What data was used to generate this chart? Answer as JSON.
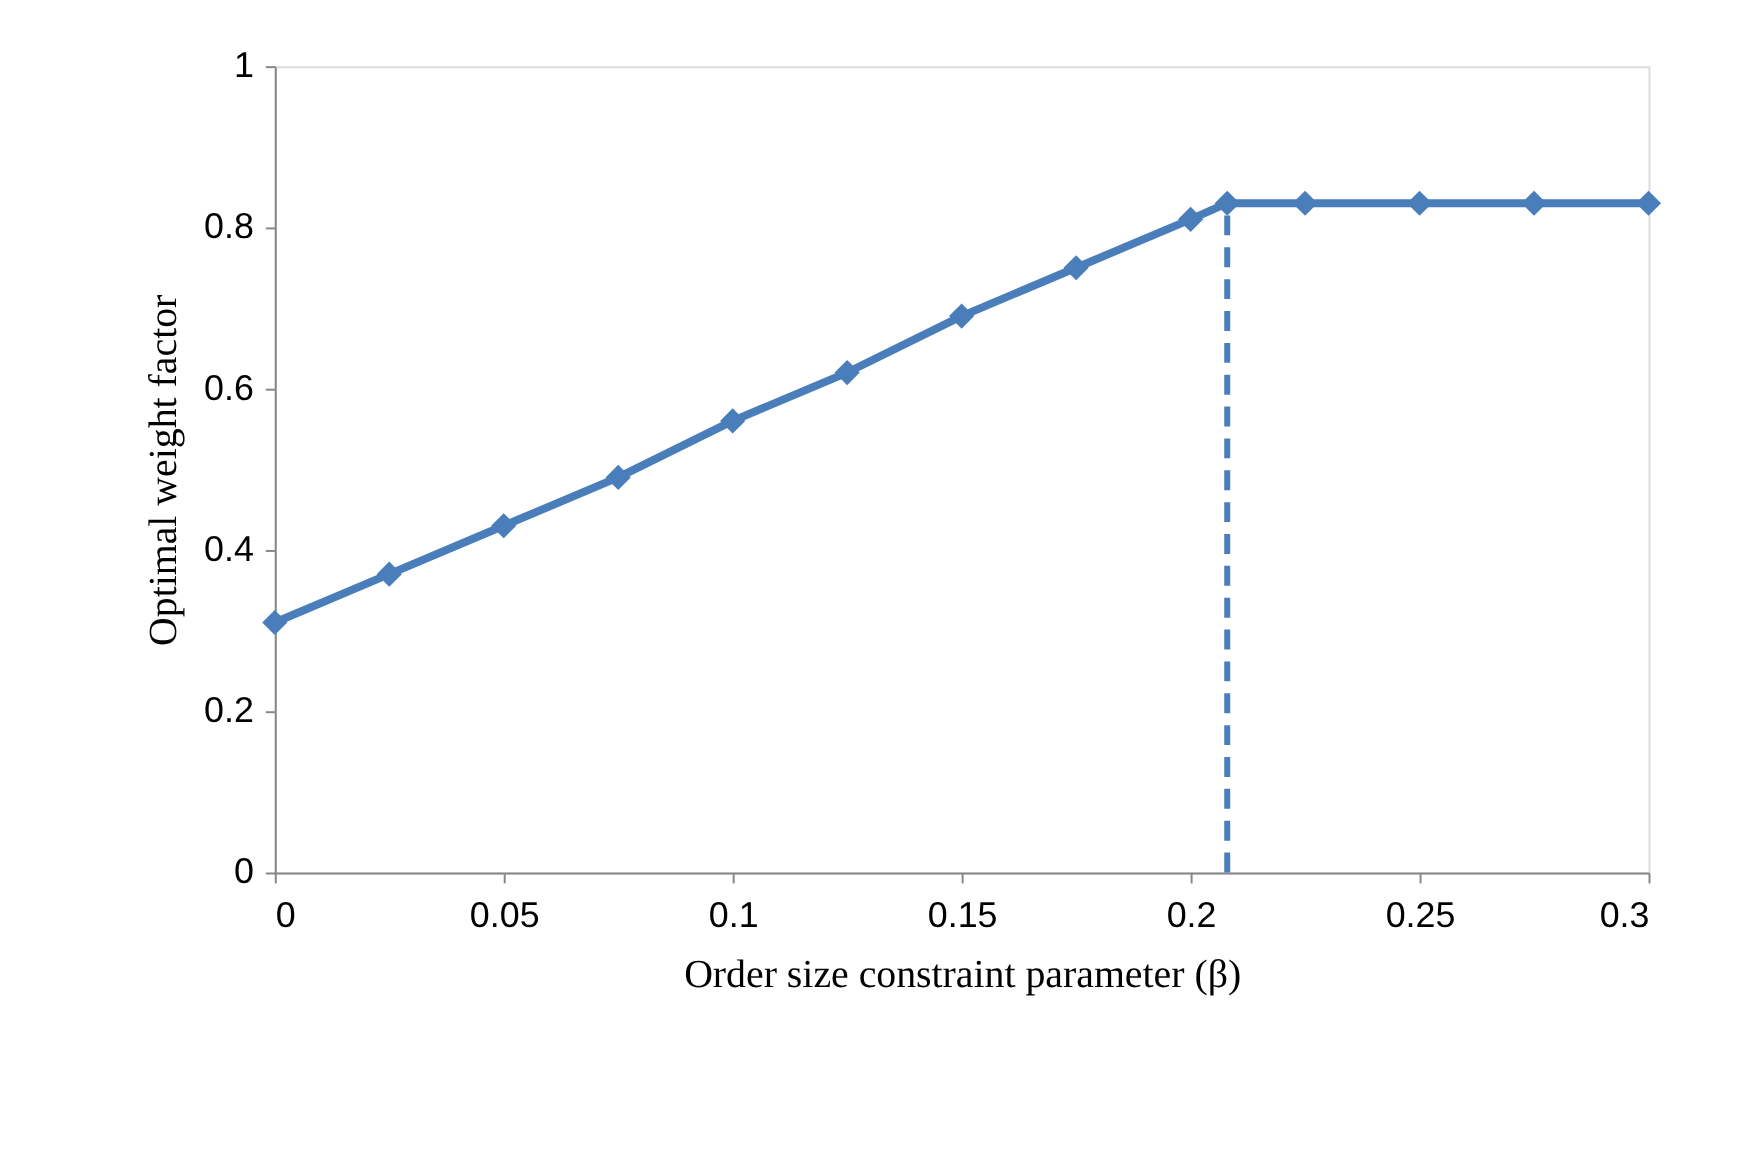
{
  "chart_data": {
    "type": "line",
    "xlabel": "Order size constraint parameter (β)",
    "ylabel": "Optimal weight factor",
    "x": [
      0,
      0.025,
      0.05,
      0.075,
      0.1,
      0.125,
      0.15,
      0.175,
      0.2,
      0.208,
      0.225,
      0.25,
      0.275,
      0.3
    ],
    "series": [
      {
        "color": "#4a7ebb",
        "values": [
          0.31,
          0.37,
          0.43,
          0.49,
          0.56,
          0.62,
          0.69,
          0.75,
          0.81,
          0.83,
          0.83,
          0.83,
          0.83,
          0.83
        ]
      }
    ],
    "xlim": [
      0,
      0.3
    ],
    "xticks": [
      0,
      0.05,
      0.1,
      0.15,
      0.2,
      0.25,
      0.3
    ],
    "ylim": [
      0,
      1
    ],
    "yticks": [
      0,
      0.2,
      0.4,
      0.6,
      0.8,
      1
    ],
    "ref_lines": [
      {
        "axis": "x",
        "value": 0.208,
        "color": "#4a7ebb",
        "line_style": "dashed"
      }
    ],
    "grid": false,
    "marker": "diamond",
    "line_style": "solid"
  }
}
